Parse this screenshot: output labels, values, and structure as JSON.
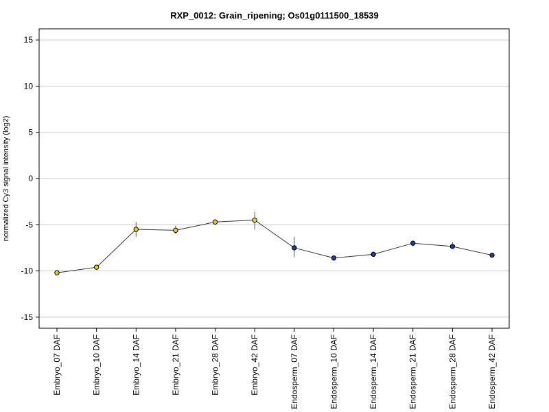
{
  "chart_data": {
    "type": "line",
    "title": "RXP_0012: Grain_ripening; Os01g0111500_18539",
    "xlabel": "",
    "ylabel": "normalized Cy3 signal intensity (log2)",
    "ylim": [
      -16.2,
      16.2
    ],
    "yticks": [
      -15,
      -10,
      -5,
      0,
      5,
      10,
      15
    ],
    "grid": "horizontal",
    "categories": [
      "Embryo_07 DAF",
      "Embryo_10 DAF",
      "Embryo_14 DAF",
      "Embryo_21 DAF",
      "Embryo_28 DAF",
      "Embryo_42 DAF",
      "Endosperm_07 DAF",
      "Endosperm_10 DAF",
      "Endosperm_14 DAF",
      "Endosperm_21 DAF",
      "Endosperm_28 DAF",
      "Endosperm_42 DAF"
    ],
    "values": [
      -10.2,
      -9.6,
      -5.5,
      -5.6,
      -4.7,
      -4.5,
      -7.5,
      -8.6,
      -8.2,
      -7.0,
      -7.35,
      -8.3
    ],
    "error_low": [
      -10.3,
      -9.8,
      -6.3,
      -6.0,
      -4.9,
      -5.5,
      -8.5,
      -8.7,
      -8.3,
      -7.1,
      -7.6,
      -8.4
    ],
    "error_high": [
      -10.1,
      -9.4,
      -4.7,
      -5.1,
      -4.5,
      -3.6,
      -6.3,
      -8.5,
      -8.1,
      -6.9,
      -6.9,
      -8.2
    ],
    "point_colors": [
      "#e8d020",
      "#e8d020",
      "#e8d020",
      "#e8d020",
      "#e8d020",
      "#e8d020",
      "#1c3d9a",
      "#1c3d9a",
      "#1c3d9a",
      "#1c3d9a",
      "#1c3d9a",
      "#1c3d9a"
    ]
  }
}
